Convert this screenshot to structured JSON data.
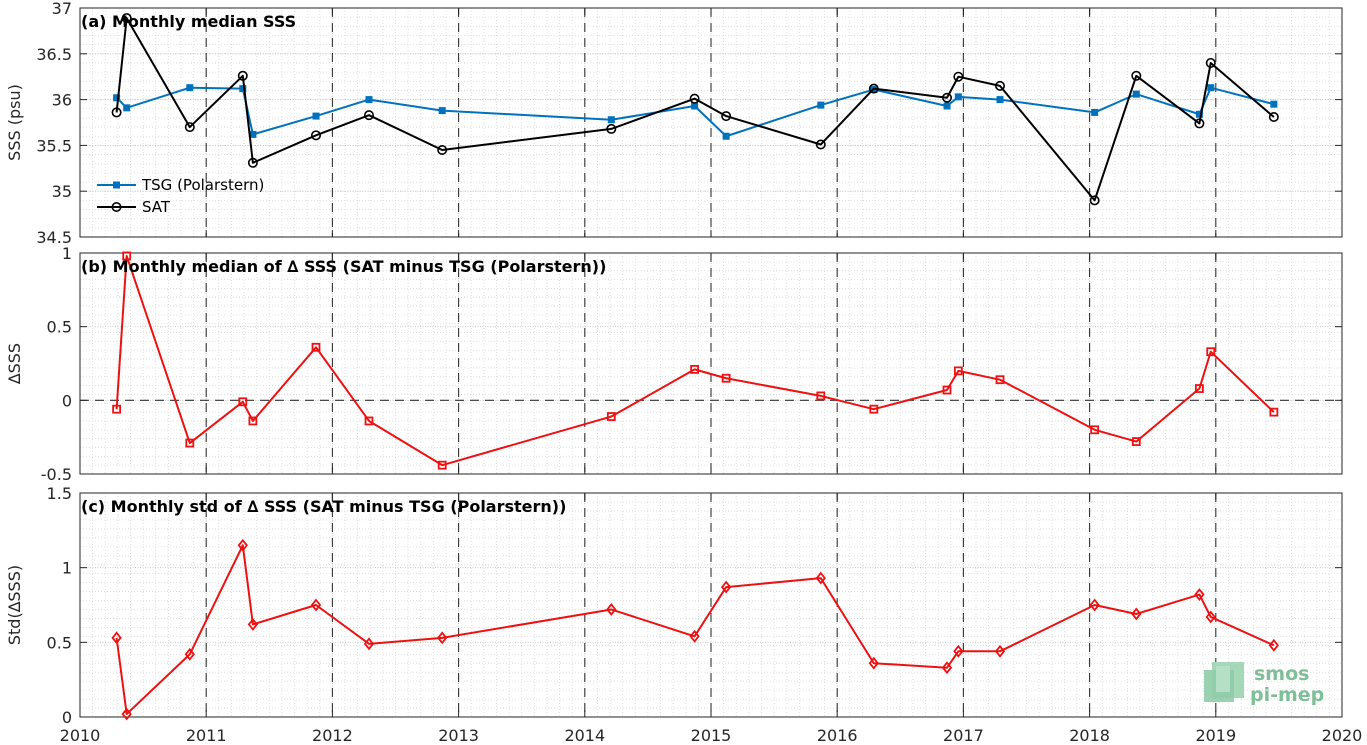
{
  "chart_data": [
    {
      "type": "line",
      "panel": "a",
      "title": "(a) Monthly median SSS",
      "xlabel": "",
      "ylabel": "SSS (psu)",
      "xlim": [
        2010,
        2020
      ],
      "ylim": [
        34.5,
        37
      ],
      "x_ticks": [
        "2010",
        "2011",
        "2012",
        "2013",
        "2014",
        "2015",
        "2016",
        "2017",
        "2018",
        "2019",
        "2020"
      ],
      "y_ticks": [
        "34.5",
        "35",
        "35.5",
        "36",
        "36.5",
        "37"
      ],
      "grid": true,
      "legend_position": "lower-left",
      "series": [
        {
          "name": "TSG (Polarstern)",
          "color": "#0072bd",
          "marker": "filled-square",
          "x": [
            2010.29,
            2010.37,
            2010.87,
            2011.29,
            2011.37,
            2011.87,
            2012.29,
            2012.87,
            2014.21,
            2014.87,
            2015.12,
            2015.87,
            2016.29,
            2016.87,
            2016.96,
            2017.29,
            2018.04,
            2018.37,
            2018.87,
            2018.96,
            2019.46
          ],
          "y": [
            36.02,
            35.91,
            36.13,
            36.12,
            35.62,
            35.82,
            36.0,
            35.88,
            35.78,
            35.93,
            35.6,
            35.94,
            36.11,
            35.93,
            36.03,
            36.0,
            35.86,
            36.06,
            35.84,
            36.13,
            35.95
          ]
        },
        {
          "name": "SAT",
          "color": "#000000",
          "marker": "open-circle",
          "x": [
            2010.29,
            2010.37,
            2010.87,
            2011.29,
            2011.37,
            2011.87,
            2012.29,
            2012.87,
            2014.21,
            2014.87,
            2015.12,
            2015.87,
            2016.29,
            2016.87,
            2016.96,
            2017.29,
            2018.04,
            2018.37,
            2018.87,
            2018.96,
            2019.46
          ],
          "y": [
            35.86,
            36.89,
            35.7,
            36.26,
            35.31,
            35.61,
            35.83,
            35.45,
            35.68,
            36.01,
            35.82,
            35.51,
            36.12,
            36.02,
            36.25,
            36.15,
            34.9,
            36.26,
            35.74,
            36.4,
            35.81
          ]
        }
      ]
    },
    {
      "type": "line",
      "panel": "b",
      "title": "(b) Monthly median of ∆ SSS (SAT minus TSG (Polarstern))",
      "xlabel": "",
      "ylabel": "∆SSS",
      "xlim": [
        2010,
        2020
      ],
      "ylim": [
        -0.5,
        1
      ],
      "x_ticks": [
        "2010",
        "2011",
        "2012",
        "2013",
        "2014",
        "2015",
        "2016",
        "2017",
        "2018",
        "2019",
        "2020"
      ],
      "y_ticks": [
        "-0.5",
        "0",
        "0.5",
        "1"
      ],
      "grid": true,
      "zero_line": true,
      "series": [
        {
          "name": "",
          "color": "#ee1111",
          "marker": "open-square",
          "x": [
            2010.29,
            2010.37,
            2010.87,
            2011.29,
            2011.37,
            2011.87,
            2012.29,
            2012.87,
            2014.21,
            2014.87,
            2015.12,
            2015.87,
            2016.29,
            2016.87,
            2016.96,
            2017.29,
            2018.04,
            2018.37,
            2018.87,
            2018.96,
            2019.46
          ],
          "y": [
            -0.06,
            0.98,
            -0.29,
            -0.01,
            -0.14,
            0.36,
            -0.14,
            -0.44,
            -0.11,
            0.21,
            0.15,
            0.03,
            -0.06,
            0.07,
            0.2,
            0.14,
            -0.2,
            -0.28,
            0.08,
            0.33,
            -0.08
          ]
        }
      ]
    },
    {
      "type": "line",
      "panel": "c",
      "title": "(c) Monthly std of ∆ SSS (SAT minus TSG (Polarstern))",
      "xlabel": "",
      "ylabel": "Std(∆SSS)",
      "xlim": [
        2010,
        2020
      ],
      "ylim": [
        0,
        1.5
      ],
      "x_ticks": [
        "2010",
        "2011",
        "2012",
        "2013",
        "2014",
        "2015",
        "2016",
        "2017",
        "2018",
        "2019",
        "2020"
      ],
      "y_ticks": [
        "0",
        "0.5",
        "1",
        "1.5"
      ],
      "grid": true,
      "series": [
        {
          "name": "",
          "color": "#ee1111",
          "marker": "open-diamond",
          "x": [
            2010.29,
            2010.37,
            2010.87,
            2011.29,
            2011.37,
            2011.87,
            2012.29,
            2012.87,
            2014.21,
            2014.87,
            2015.12,
            2015.87,
            2016.29,
            2016.87,
            2016.96,
            2017.29,
            2018.04,
            2018.37,
            2018.87,
            2018.96,
            2019.46
          ],
          "y": [
            0.53,
            0.02,
            0.42,
            1.15,
            0.62,
            0.75,
            0.49,
            0.53,
            0.72,
            0.54,
            0.87,
            0.93,
            0.36,
            0.33,
            0.44,
            0.44,
            0.75,
            0.69,
            0.82,
            0.67,
            0.48
          ]
        }
      ]
    }
  ],
  "logo": {
    "line1": "smos",
    "line2": "pi-mep",
    "color": "#7fbf98"
  }
}
